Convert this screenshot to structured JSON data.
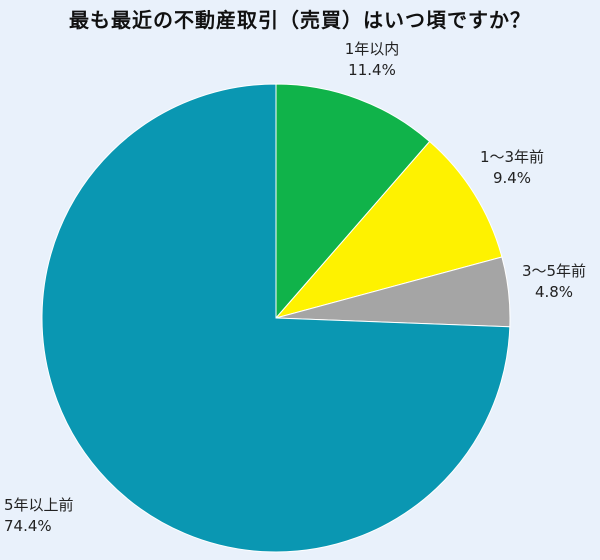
{
  "chart_data": {
    "type": "pie",
    "title": "最も最近の不動産取引（売買）はいつ頃ですか？",
    "slices": [
      {
        "label": "1年以内",
        "value": 11.4,
        "value_label": "11.4%",
        "color": "#10b34a"
      },
      {
        "label": "1～3年前",
        "value": 9.4,
        "value_label": "9.4%",
        "color": "#fef200"
      },
      {
        "label": "3～5年前",
        "value": 4.8,
        "value_label": "4.8%",
        "color": "#a5a5a5"
      },
      {
        "label": "5年以上前",
        "value": 74.4,
        "value_label": "74.4%",
        "color": "#0a97b2"
      }
    ],
    "start": "12 o'clock",
    "direction": "clockwise"
  }
}
